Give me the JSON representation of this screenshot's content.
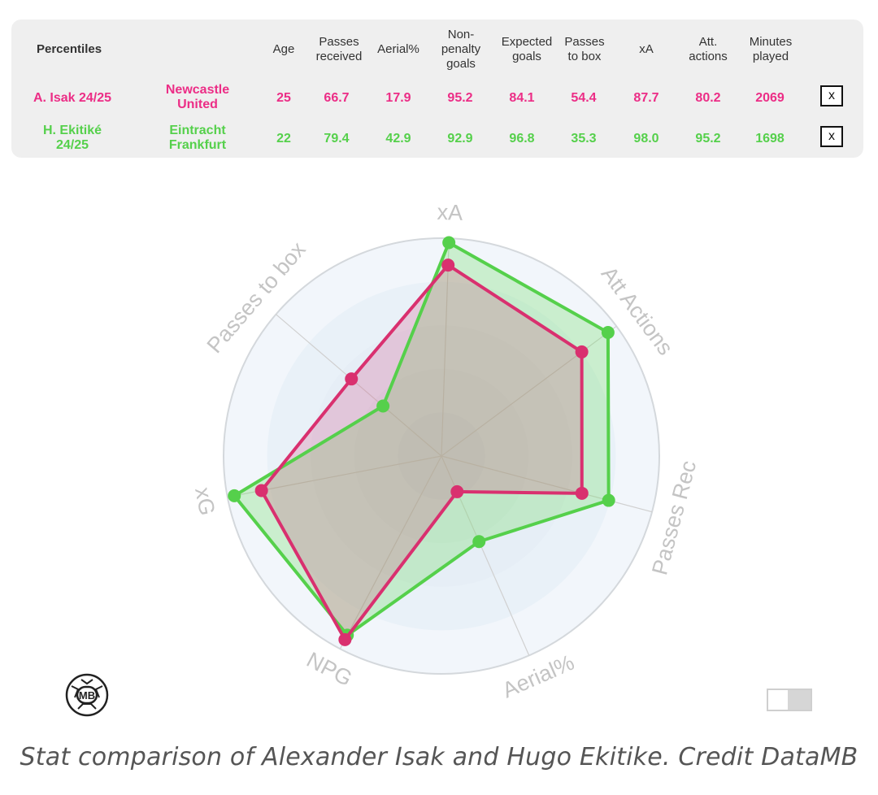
{
  "table": {
    "headers": {
      "percentiles": "Percentiles",
      "age": "Age",
      "passes_received": [
        "Passes",
        "received"
      ],
      "aerial": "Aerial%",
      "npg": [
        "Non-",
        "penalty",
        "goals"
      ],
      "xg": [
        "Expected",
        "goals"
      ],
      "passes_to_box": [
        "Passes",
        "to box"
      ],
      "xa": "xA",
      "att_actions": [
        "Att.",
        "actions"
      ],
      "minutes": [
        "Minutes",
        "played"
      ]
    },
    "rows": [
      {
        "player": [
          "A. Isak 24/25"
        ],
        "team": [
          "Newcastle",
          "United"
        ],
        "age": "25",
        "passes_received": "66.7",
        "aerial": "17.9",
        "npg": "95.2",
        "xg": "84.1",
        "passes_to_box": "54.4",
        "xa": "87.7",
        "att_actions": "80.2",
        "minutes": "2069",
        "close": "x"
      },
      {
        "player": [
          "H. Ekitiké",
          "24/25"
        ],
        "team": [
          "Eintracht",
          "Frankfurt"
        ],
        "age": "22",
        "passes_received": "79.4",
        "aerial": "42.9",
        "npg": "92.9",
        "xg": "96.8",
        "passes_to_box": "35.3",
        "xa": "98.0",
        "att_actions": "95.2",
        "minutes": "1698",
        "close": "x"
      }
    ]
  },
  "colors": {
    "isak": "#ec2d86",
    "ekitike": "#55d04b"
  },
  "chart_data": {
    "type": "radar",
    "axes": [
      "xA",
      "Att Actions",
      "Passes Rec",
      "Aerial%",
      "NPG",
      "xG",
      "Passes to box"
    ],
    "range": [
      0,
      100
    ],
    "series": [
      {
        "name": "A. Isak 24/25",
        "color": "#ec2d86",
        "values": [
          87.7,
          80.2,
          66.7,
          17.9,
          95.2,
          84.1,
          54.4
        ]
      },
      {
        "name": "H. Ekitiké 24/25",
        "color": "#55d04b",
        "values": [
          98.0,
          95.2,
          79.4,
          42.9,
          92.9,
          96.8,
          35.3
        ]
      }
    ],
    "legend": "table-top"
  },
  "logo": {
    "text": "MB",
    "icon": "datamb-logo-icon"
  },
  "toggle": {
    "state": "off"
  },
  "caption": "Stat comparison of Alexander Isak and Hugo Ekitike. Credit DataMB"
}
